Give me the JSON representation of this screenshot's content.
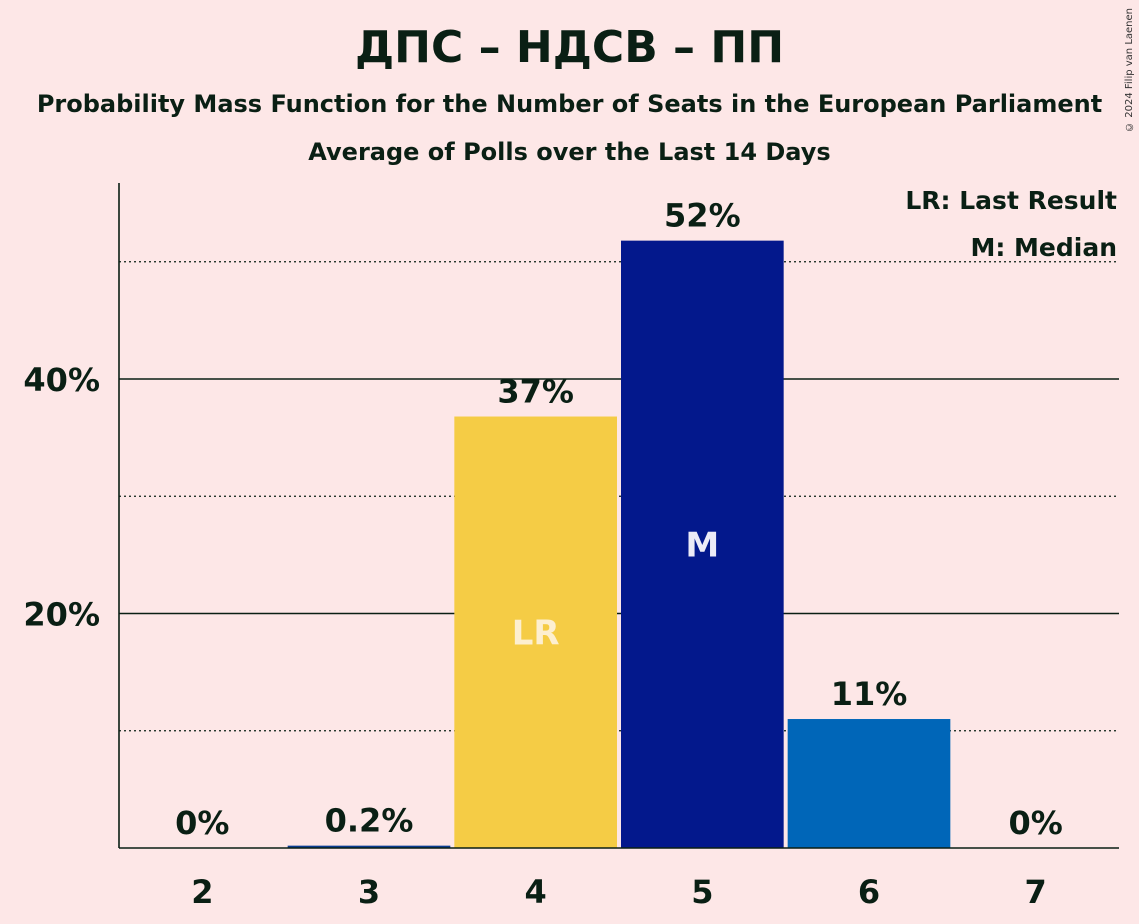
{
  "title": "ДПС – НДСВ – ПП",
  "subtitle": "Probability Mass Function for the Number of Seats in the European Parliament",
  "subtitle2": "Average of Polls over the Last 14 Days",
  "copyright": "© 2024 Filip van Laenen",
  "legend": {
    "last_result": "LR: Last Result",
    "median": "M: Median"
  },
  "chart_data": {
    "type": "bar",
    "categories": [
      "2",
      "3",
      "4",
      "5",
      "6",
      "7"
    ],
    "values": [
      0,
      0.2,
      36.8,
      51.8,
      11.0,
      0
    ],
    "value_labels": [
      "0%",
      "0.2%",
      "37%",
      "52%",
      "11%",
      "0%"
    ],
    "bar_markers": [
      "",
      "",
      "LR",
      "M",
      "",
      ""
    ],
    "bar_colors": [
      "#0A3D91",
      "#0A3D91",
      "#F5CC45",
      "#03188C",
      "#0066B8",
      "#0A3D91"
    ],
    "ylim": [
      0,
      56
    ],
    "yticks_major": [
      20,
      40
    ],
    "ytick_labels": [
      "20%",
      "40%"
    ],
    "yticks_minor": [
      10,
      30,
      50
    ],
    "legend_position": "top-right"
  }
}
